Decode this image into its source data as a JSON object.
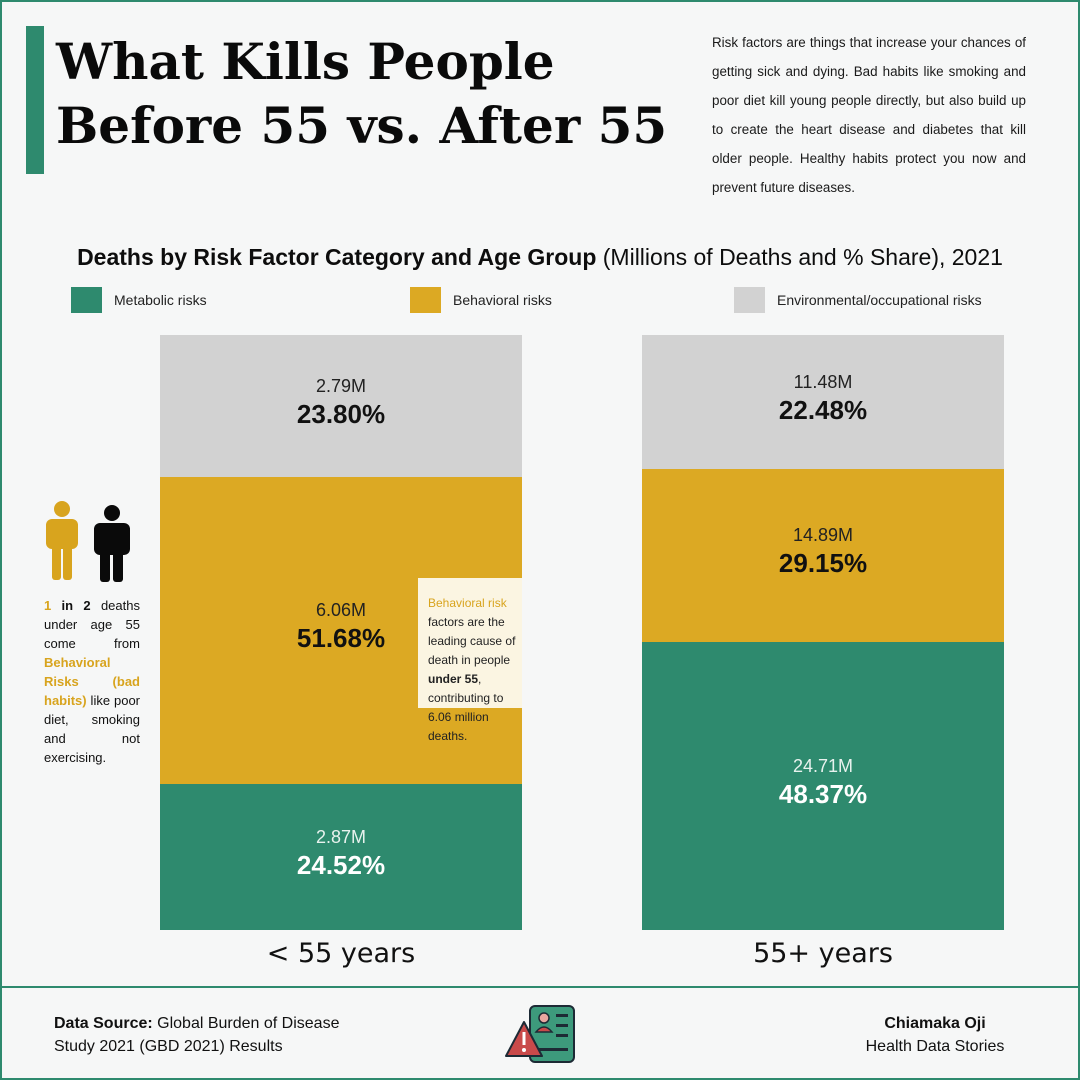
{
  "header": {
    "title_line1": "What Kills People",
    "title_line2": "Before 55 vs. After 55",
    "intro": "Risk factors are things that increase your chances of getting sick and dying. Bad habits like smoking and poor diet kill young people directly, but also build up to create the heart disease and diabetes that kill older people. Healthy habits protect you now and prevent future diseases."
  },
  "chart_heading": {
    "bold": "Deaths by Risk Factor Category and Age Group",
    "rest": " (Millions of Deaths and % Share), 2021"
  },
  "legend": [
    {
      "label": "Metabolic risks",
      "color": "#2e8a6e"
    },
    {
      "label": "Behavioral risks",
      "color": "#dca923"
    },
    {
      "label": "Environmental/occupational risks",
      "color": "#d2d2d2"
    }
  ],
  "chart_data": {
    "type": "bar",
    "stacked": true,
    "normalized_percent": true,
    "title": "Deaths by Risk Factor Category and Age Group (Millions of Deaths and % Share), 2021",
    "categories": [
      "< 55 years",
      "55+ years"
    ],
    "series": [
      {
        "name": "Metabolic risks",
        "color": "#2e8a6e",
        "values": [
          24.52,
          48.37
        ],
        "deaths_label": [
          "2.87M",
          "24.71M"
        ],
        "pct_label": [
          "24.52%",
          "48.37%"
        ]
      },
      {
        "name": "Behavioral risks",
        "color": "#dca923",
        "values": [
          51.68,
          29.15
        ],
        "deaths_label": [
          "6.06M",
          "14.89M"
        ],
        "pct_label": [
          "51.68%",
          "29.15%"
        ]
      },
      {
        "name": "Environmental/occupational risks",
        "color": "#d2d2d2",
        "values": [
          23.8,
          22.48
        ],
        "deaths_label": [
          "2.79M",
          "11.48M"
        ],
        "pct_label": [
          "23.80%",
          "22.48%"
        ]
      }
    ],
    "ylim": [
      0,
      100
    ]
  },
  "callout": {
    "gold": "Behavioral risk",
    "text1": " factors are the leading cause of death in people ",
    "bold": "under 55",
    "text2": ", contributing to 6.06 million deaths."
  },
  "side_note": {
    "one": "1",
    "in2": " in 2",
    "text1": " deaths under age 55 come from ",
    "gold": "Behavioral Risks (bad habits)",
    "text2": " like poor diet, smoking and not exercising."
  },
  "footer": {
    "source_label": "Data Source:",
    "source_text": " Global Burden of Disease Study 2021 (GBD 2021) Results",
    "author_name": "Chiamaka Oji",
    "author_org": "Health Data Stories"
  },
  "colors": {
    "accent": "#2e8a6e",
    "gold": "#dca923"
  }
}
